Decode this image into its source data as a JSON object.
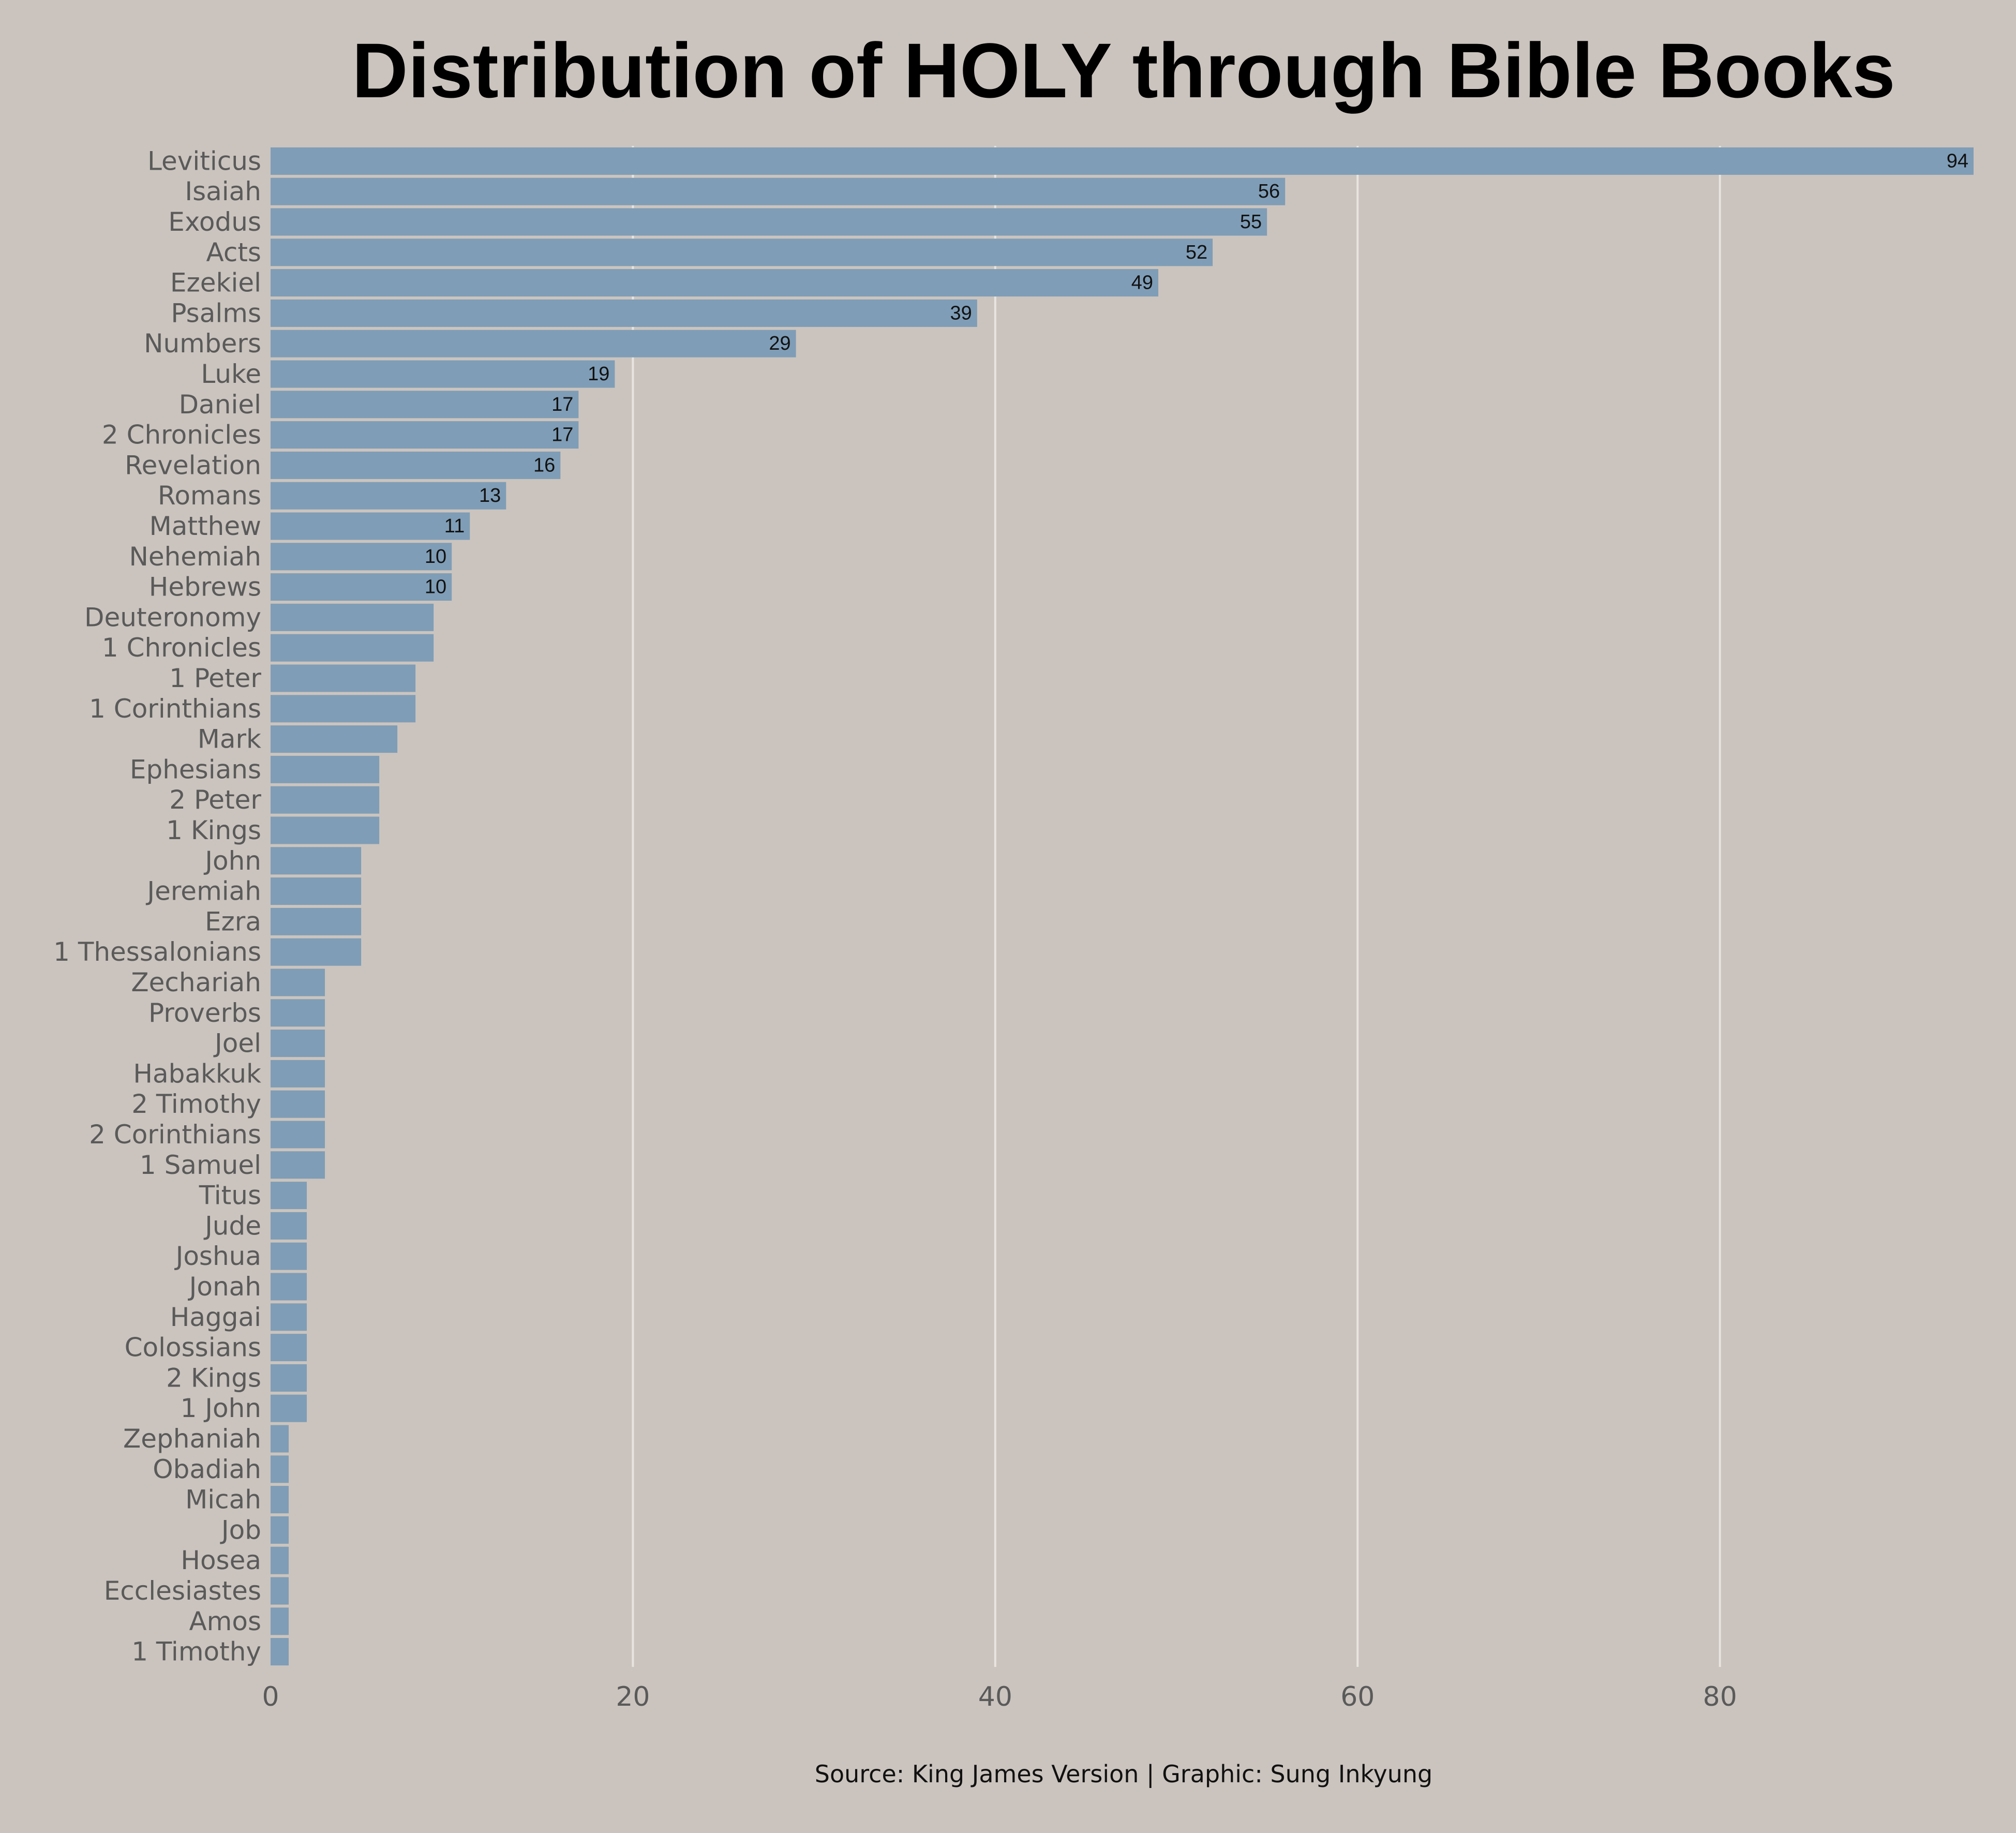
{
  "chart_data": {
    "type": "bar",
    "orientation": "horizontal",
    "title": "Distribution of HOLY through Bible Books",
    "source": "Source: King James Version | Graphic: Sung Inkyung",
    "xlabel": "",
    "ylabel": "",
    "xlim": [
      0,
      94
    ],
    "xticks": [
      0,
      20,
      40,
      60,
      80
    ],
    "grid": "vertical",
    "legend": "none",
    "bar_color": "#7f9db6",
    "background": "#cbc4be",
    "grid_color": "#e8e4e0",
    "label_color": "#5a5a5a",
    "value_label_min": 10,
    "categories": [
      "Leviticus",
      "Isaiah",
      "Exodus",
      "Acts",
      "Ezekiel",
      "Psalms",
      "Numbers",
      "Luke",
      "Daniel",
      "2 Chronicles",
      "Revelation",
      "Romans",
      "Matthew",
      "Nehemiah",
      "Hebrews",
      "Deuteronomy",
      "1 Chronicles",
      "1 Peter",
      "1 Corinthians",
      "Mark",
      "Ephesians",
      "2 Peter",
      "1 Kings",
      "John",
      "Jeremiah",
      "Ezra",
      "1 Thessalonians",
      "Zechariah",
      "Proverbs",
      "Joel",
      "Habakkuk",
      "2 Timothy",
      "2 Corinthians",
      "1 Samuel",
      "Titus",
      "Jude",
      "Joshua",
      "Jonah",
      "Haggai",
      "Colossians",
      "2 Kings",
      "1 John",
      "Zephaniah",
      "Obadiah",
      "Micah",
      "Job",
      "Hosea",
      "Ecclesiastes",
      "Amos",
      "1 Timothy"
    ],
    "values": [
      94,
      56,
      55,
      52,
      49,
      39,
      29,
      19,
      17,
      17,
      16,
      13,
      11,
      10,
      10,
      9,
      9,
      8,
      8,
      7,
      6,
      6,
      6,
      5,
      5,
      5,
      5,
      3,
      3,
      3,
      3,
      3,
      3,
      3,
      2,
      2,
      2,
      2,
      2,
      2,
      2,
      2,
      1,
      1,
      1,
      1,
      1,
      1,
      1,
      1
    ]
  }
}
